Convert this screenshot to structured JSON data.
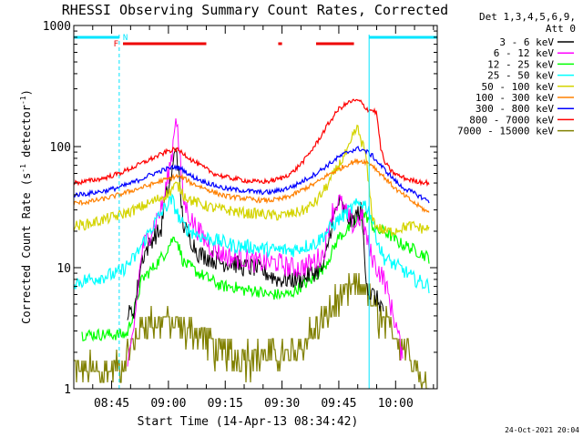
{
  "chart_data": {
    "type": "line",
    "title": "RHESSI Observing Summary Count Rates, Corrected",
    "xlabel": "Start Time (14-Apr-13 08:34:42)",
    "ylabel": "Corrected Count Rate (s",
    "ylabel_sup1": "-1",
    "ylabel_mid": " detector",
    "ylabel_sup2": "-1",
    "ylabel_end": ")",
    "y_scale": "log",
    "ylim": [
      1,
      1000
    ],
    "xlim": [
      "08:34",
      "10:10"
    ],
    "x_ticks": [
      {
        "t": 44.0,
        "label": "08:45"
      },
      {
        "t": 59.0,
        "label": "09:00"
      },
      {
        "t": 74.0,
        "label": "09:15"
      },
      {
        "t": 89.0,
        "label": "09:30"
      },
      {
        "t": 104.0,
        "label": "09:45"
      },
      {
        "t": 119.0,
        "label": "10:00"
      }
    ],
    "y_ticks": [
      {
        "v": 1,
        "label": "1"
      },
      {
        "v": 10,
        "label": "10"
      },
      {
        "v": 100,
        "label": "100"
      },
      {
        "v": 1000,
        "label": "1000"
      }
    ],
    "legend": {
      "position": "top-right",
      "header1": "Det 1,3,4,5,6,9,",
      "header2": "Att 0"
    },
    "series": [
      {
        "name": "3 - 6 keV",
        "color": "#000000",
        "t": [
          48,
          50,
          52,
          55,
          57,
          58,
          59,
          60,
          61,
          62,
          63,
          65,
          67,
          70,
          73,
          76,
          79,
          82,
          85,
          88,
          91,
          94,
          97,
          100,
          102,
          104,
          106,
          107,
          108,
          109,
          110,
          111,
          112,
          113,
          114,
          115,
          116
        ],
        "values": [
          4.0,
          4.5,
          12,
          18,
          20,
          35,
          45,
          60,
          110,
          45,
          22,
          17,
          13,
          12,
          11,
          11,
          10,
          10,
          9,
          8,
          8,
          8,
          9,
          10,
          22,
          35,
          28,
          24,
          25,
          28,
          30,
          10,
          6,
          6,
          5.5,
          5,
          4.5
        ]
      },
      {
        "name": "6 - 12 keV",
        "color": "#ff00ff",
        "t": [
          48,
          50,
          52,
          55,
          57,
          58,
          59,
          60,
          61,
          62,
          63,
          65,
          67,
          70,
          73,
          76,
          79,
          82,
          85,
          88,
          91,
          94,
          97,
          100,
          102,
          104,
          106,
          108,
          110,
          111,
          112,
          113,
          114,
          115,
          116,
          117,
          118,
          119,
          120,
          121
        ],
        "values": [
          1.2,
          3.5,
          14,
          22,
          30,
          40,
          60,
          90,
          200,
          80,
          35,
          25,
          20,
          15,
          13,
          12,
          12,
          11,
          11,
          11,
          10,
          10,
          11,
          13,
          28,
          36,
          28,
          22,
          27,
          20,
          14,
          12,
          10,
          9,
          8,
          6,
          4.5,
          3.5,
          2.5,
          1.5
        ]
      },
      {
        "name": "12 - 25 keV",
        "color": "#00ff00",
        "t": [
          36,
          40,
          44,
          48,
          50,
          52,
          55,
          57,
          58,
          59,
          60,
          61,
          62,
          63,
          65,
          67,
          70,
          73,
          76,
          79,
          82,
          85,
          88,
          91,
          94,
          97,
          100,
          102,
          104,
          106,
          108,
          110,
          111,
          112,
          113,
          114,
          116,
          118,
          120,
          122,
          124,
          126,
          128
        ],
        "values": [
          2.8,
          2.8,
          2.8,
          2.8,
          4.5,
          8,
          10,
          12,
          13,
          15,
          17,
          18,
          14,
          11,
          10,
          9,
          8,
          7,
          7,
          6.5,
          6.5,
          6,
          6,
          6,
          7,
          8,
          10,
          13,
          18,
          20,
          23,
          27,
          27,
          25,
          22,
          20,
          20,
          18,
          16,
          15,
          14,
          13,
          12
        ]
      },
      {
        "name": "25 - 50 keV",
        "color": "#00ffff",
        "t": [
          34,
          38,
          42,
          46,
          50,
          54,
          57,
          59,
          60,
          61,
          62,
          63,
          65,
          68,
          71,
          74,
          77,
          80,
          83,
          86,
          89,
          92,
          95,
          98,
          101,
          104,
          107,
          108,
          109,
          110,
          111,
          112,
          113,
          114,
          115,
          116,
          118,
          120,
          122,
          124,
          126,
          128
        ],
        "values": [
          7.5,
          8,
          8.5,
          9,
          12,
          20,
          28,
          34,
          36,
          30,
          25,
          22,
          20,
          18,
          17,
          16,
          15,
          15,
          14.5,
          14,
          14,
          14,
          15,
          16,
          20,
          25,
          30,
          32,
          33,
          35,
          33,
          30,
          24,
          18,
          14,
          12,
          11,
          10,
          9,
          8,
          7.5,
          7
        ]
      },
      {
        "name": "50 - 100 keV",
        "color": "#d4d400",
        "t": [
          34,
          38,
          42,
          46,
          50,
          54,
          57,
          59,
          60,
          61,
          62,
          63,
          65,
          68,
          71,
          74,
          77,
          80,
          83,
          86,
          89,
          92,
          95,
          98,
          101,
          104,
          107,
          108,
          109,
          110,
          111,
          112,
          113,
          114,
          116,
          118,
          120,
          122,
          124,
          126,
          128
        ],
        "values": [
          22,
          23,
          25,
          27,
          30,
          34,
          38,
          41,
          45,
          48,
          46,
          40,
          36,
          33,
          31,
          30,
          29,
          28,
          28,
          27,
          27,
          28,
          30,
          35,
          48,
          70,
          100,
          130,
          140,
          110,
          90,
          45,
          25,
          22,
          20,
          20,
          21,
          22,
          22,
          21,
          21
        ]
      },
      {
        "name": "100 - 300 keV",
        "color": "#ff8000",
        "t": [
          34,
          38,
          42,
          46,
          50,
          54,
          57,
          59,
          61,
          63,
          65,
          68,
          71,
          74,
          77,
          80,
          83,
          86,
          89,
          92,
          95,
          98,
          101,
          104,
          107,
          109,
          110,
          111,
          112,
          113,
          114,
          116,
          118,
          120,
          122,
          124,
          126,
          128
        ],
        "values": [
          34,
          35,
          37,
          40,
          44,
          48,
          52,
          54,
          57,
          55,
          50,
          46,
          42,
          39,
          38,
          37,
          36,
          36,
          37,
          40,
          45,
          50,
          58,
          65,
          73,
          76,
          76,
          75,
          73,
          70,
          64,
          56,
          48,
          42,
          38,
          34,
          31,
          28
        ]
      },
      {
        "name": "300 - 800 keV",
        "color": "#0000ff",
        "t": [
          34,
          38,
          42,
          46,
          50,
          54,
          57,
          59,
          61,
          63,
          65,
          68,
          71,
          74,
          77,
          80,
          83,
          86,
          89,
          92,
          95,
          98,
          101,
          104,
          107,
          109,
          110,
          111,
          112,
          113,
          114,
          116,
          118,
          120,
          122,
          124,
          126,
          128
        ],
        "values": [
          40,
          41,
          43,
          46,
          51,
          58,
          63,
          66,
          68,
          64,
          57,
          52,
          48,
          45,
          44,
          43,
          42,
          42,
          44,
          47,
          53,
          60,
          70,
          82,
          92,
          96,
          95,
          92,
          88,
          83,
          76,
          65,
          56,
          48,
          44,
          41,
          38,
          35
        ]
      },
      {
        "name": "800 - 7000 keV",
        "color": "#ff0000",
        "t": [
          34,
          38,
          42,
          46,
          50,
          54,
          57,
          59,
          61,
          63,
          65,
          68,
          71,
          74,
          77,
          80,
          83,
          86,
          89,
          92,
          95,
          98,
          101,
          104,
          107,
          109,
          110,
          111,
          112,
          113,
          114,
          115,
          116,
          118,
          120,
          122,
          124,
          126,
          128
        ],
        "values": [
          50,
          52,
          55,
          60,
          68,
          78,
          86,
          92,
          95,
          88,
          78,
          68,
          60,
          56,
          54,
          52,
          51,
          52,
          55,
          62,
          78,
          105,
          150,
          205,
          235,
          240,
          230,
          210,
          200,
          200,
          190,
          100,
          75,
          62,
          57,
          54,
          52,
          51,
          50
        ]
      },
      {
        "name": "7000 - 15000 keV",
        "color": "#808000",
        "t": [
          34,
          38,
          42,
          46,
          50,
          52,
          55,
          58,
          61,
          64,
          67,
          70,
          73,
          76,
          79,
          82,
          85,
          88,
          91,
          94,
          97,
          100,
          103,
          106,
          108,
          110,
          112,
          114,
          116,
          118,
          120,
          122,
          124,
          126,
          128
        ],
        "values": [
          1.5,
          1.5,
          1.5,
          1.5,
          2.5,
          3.5,
          3.8,
          3.8,
          3.5,
          3.2,
          3.0,
          2.6,
          2.0,
          2.0,
          2.0,
          2.0,
          2.0,
          2.0,
          2.0,
          2.4,
          3.0,
          4.0,
          5.2,
          6.5,
          7.0,
          7.5,
          6.0,
          4.5,
          3.5,
          3.2,
          3.0,
          2.4,
          1.8,
          1.2,
          1.0
        ]
      }
    ],
    "flags": {
      "N_label": "N",
      "F_label": "F",
      "color_cyan": "#00e5ff",
      "color_red": "#ee0000",
      "night_segments": [
        [
          34,
          46
        ],
        [
          112,
          130
        ]
      ],
      "flare_segments": [
        [
          47,
          69
        ],
        [
          88,
          89
        ],
        [
          98,
          108
        ]
      ],
      "vlines": [
        46,
        112,
        130
      ]
    }
  },
  "footer_date": "24-Oct-2021 20:04"
}
